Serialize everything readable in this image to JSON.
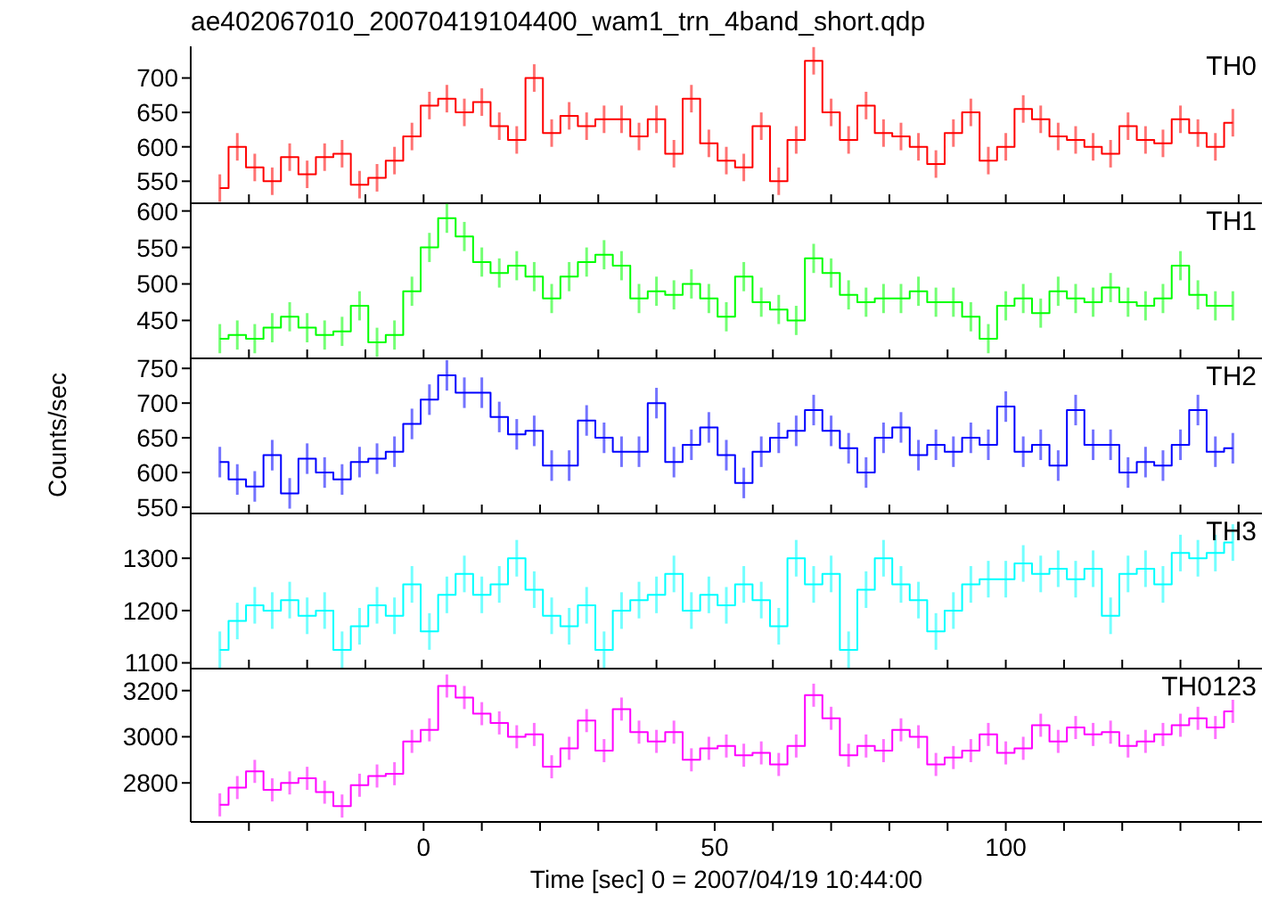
{
  "chart_data": [
    {
      "type": "step",
      "title": "ae402067010_20070419104400_wam1_trn_4band_short.qdp",
      "x": [
        -35,
        -32,
        -29,
        -26,
        -23,
        -20,
        -17,
        -14,
        -11,
        -8,
        -5,
        -2,
        1,
        4,
        7,
        10,
        13,
        16,
        19,
        22,
        25,
        28,
        31,
        34,
        37,
        40,
        43,
        46,
        49,
        52,
        55,
        58,
        61,
        64,
        67,
        70,
        73,
        76,
        79,
        82,
        85,
        88,
        91,
        94,
        97,
        100,
        103,
        106,
        109,
        112,
        115,
        118,
        121,
        124,
        127,
        130,
        133,
        136,
        139
      ],
      "xlim": [
        -40,
        144
      ],
      "xticks": [
        {
          "value": -30,
          "label": null
        },
        {
          "value": -20,
          "label": null
        },
        {
          "value": -10,
          "label": null
        },
        0,
        {
          "value": 10,
          "label": null
        },
        {
          "value": 20,
          "label": null
        },
        {
          "value": 30,
          "label": null
        },
        {
          "value": 40,
          "label": null
        },
        50,
        {
          "value": 60,
          "label": null
        },
        {
          "value": 70,
          "label": null
        },
        {
          "value": 80,
          "label": null
        },
        {
          "value": 90,
          "label": null
        },
        100,
        {
          "value": 110,
          "label": null
        },
        {
          "value": 120,
          "label": null
        },
        {
          "value": 130,
          "label": null
        },
        {
          "value": 140,
          "label": null
        }
      ],
      "ylim": [
        518,
        746
      ],
      "yticks": [
        550,
        600,
        650,
        700
      ],
      "tick_labels": "y",
      "series": [
        {
          "name": "TH0",
          "color": "#ff0000",
          "values": [
            540,
            600,
            570,
            550,
            585,
            560,
            585,
            590,
            545,
            555,
            580,
            615,
            660,
            670,
            650,
            665,
            630,
            610,
            700,
            620,
            645,
            630,
            640,
            640,
            615,
            640,
            590,
            670,
            605,
            580,
            570,
            630,
            550,
            610,
            725,
            650,
            610,
            660,
            620,
            615,
            600,
            575,
            620,
            650,
            580,
            600,
            655,
            640,
            615,
            610,
            600,
            590,
            630,
            610,
            605,
            640,
            620,
            600,
            635
          ],
          "errors": [
            20,
            20,
            20,
            20,
            20,
            20,
            20,
            20,
            20,
            20,
            20,
            20,
            20,
            20,
            20,
            20,
            20,
            20,
            20,
            20,
            20,
            20,
            20,
            20,
            20,
            20,
            20,
            20,
            20,
            20,
            20,
            20,
            20,
            20,
            20,
            20,
            20,
            20,
            20,
            20,
            20,
            20,
            20,
            20,
            20,
            20,
            20,
            20,
            20,
            20,
            20,
            20,
            20,
            20,
            20,
            20,
            20,
            20,
            20
          ]
        }
      ]
    },
    {
      "type": "step",
      "x": [
        -35,
        -32,
        -29,
        -26,
        -23,
        -20,
        -17,
        -14,
        -11,
        -8,
        -5,
        -2,
        1,
        4,
        7,
        10,
        13,
        16,
        19,
        22,
        25,
        28,
        31,
        34,
        37,
        40,
        43,
        46,
        49,
        52,
        55,
        58,
        61,
        64,
        67,
        70,
        73,
        76,
        79,
        82,
        85,
        88,
        91,
        94,
        97,
        100,
        103,
        106,
        109,
        112,
        115,
        118,
        121,
        124,
        127,
        130,
        133,
        136,
        139
      ],
      "xlim": [
        -40,
        144
      ],
      "xticks": [
        {
          "value": -30,
          "label": null
        },
        {
          "value": -20,
          "label": null
        },
        {
          "value": -10,
          "label": null
        },
        0,
        {
          "value": 10,
          "label": null
        },
        {
          "value": 20,
          "label": null
        },
        {
          "value": 30,
          "label": null
        },
        {
          "value": 40,
          "label": null
        },
        50,
        {
          "value": 60,
          "label": null
        },
        {
          "value": 70,
          "label": null
        },
        {
          "value": 80,
          "label": null
        },
        {
          "value": 90,
          "label": null
        },
        100,
        {
          "value": 110,
          "label": null
        },
        {
          "value": 120,
          "label": null
        },
        {
          "value": 130,
          "label": null
        },
        {
          "value": 140,
          "label": null
        }
      ],
      "ylim": [
        398,
        613
      ],
      "yticks": [
        450,
        500,
        550,
        600
      ],
      "tick_labels": "y",
      "series": [
        {
          "name": "TH1",
          "color": "#00ff00",
          "values": [
            425,
            430,
            425,
            440,
            455,
            440,
            430,
            435,
            470,
            420,
            430,
            490,
            550,
            590,
            565,
            530,
            515,
            525,
            510,
            480,
            510,
            530,
            540,
            525,
            480,
            490,
            485,
            500,
            480,
            455,
            510,
            475,
            465,
            450,
            535,
            515,
            485,
            475,
            480,
            480,
            490,
            475,
            475,
            455,
            425,
            470,
            480,
            460,
            490,
            480,
            475,
            495,
            475,
            470,
            480,
            525,
            485,
            470,
            470
          ],
          "errors": [
            20,
            20,
            20,
            20,
            20,
            20,
            20,
            20,
            20,
            20,
            20,
            20,
            20,
            20,
            20,
            20,
            20,
            20,
            20,
            20,
            20,
            20,
            20,
            20,
            20,
            20,
            20,
            20,
            20,
            20,
            20,
            20,
            20,
            20,
            20,
            20,
            20,
            20,
            20,
            20,
            20,
            20,
            20,
            20,
            20,
            20,
            20,
            20,
            20,
            20,
            20,
            20,
            20,
            20,
            20,
            20,
            20,
            20,
            20
          ]
        }
      ]
    },
    {
      "type": "step",
      "ylabel": "Counts/sec",
      "x": [
        -35,
        -32,
        -29,
        -26,
        -23,
        -20,
        -17,
        -14,
        -11,
        -8,
        -5,
        -2,
        1,
        4,
        7,
        10,
        13,
        16,
        19,
        22,
        25,
        28,
        31,
        34,
        37,
        40,
        43,
        46,
        49,
        52,
        55,
        58,
        61,
        64,
        67,
        70,
        73,
        76,
        79,
        82,
        85,
        88,
        91,
        94,
        97,
        100,
        103,
        106,
        109,
        112,
        115,
        118,
        121,
        124,
        127,
        130,
        133,
        136,
        139
      ],
      "xlim": [
        -40,
        144
      ],
      "xticks": [
        {
          "value": -30,
          "label": null
        },
        {
          "value": -20,
          "label": null
        },
        {
          "value": -10,
          "label": null
        },
        0,
        {
          "value": 10,
          "label": null
        },
        {
          "value": 20,
          "label": null
        },
        {
          "value": 30,
          "label": null
        },
        {
          "value": 40,
          "label": null
        },
        50,
        {
          "value": 60,
          "label": null
        },
        {
          "value": 70,
          "label": null
        },
        {
          "value": 80,
          "label": null
        },
        {
          "value": 90,
          "label": null
        },
        100,
        {
          "value": 110,
          "label": null
        },
        {
          "value": 120,
          "label": null
        },
        {
          "value": 130,
          "label": null
        },
        {
          "value": 140,
          "label": null
        }
      ],
      "ylim": [
        541,
        767
      ],
      "yticks": [
        550,
        600,
        650,
        700,
        750
      ],
      "tick_labels": "y",
      "series": [
        {
          "name": "TH2",
          "color": "#0000ff",
          "values": [
            615,
            590,
            580,
            625,
            570,
            620,
            600,
            590,
            615,
            620,
            630,
            670,
            705,
            740,
            715,
            715,
            680,
            655,
            660,
            610,
            610,
            675,
            650,
            630,
            630,
            700,
            615,
            640,
            665,
            625,
            585,
            630,
            650,
            660,
            690,
            660,
            635,
            600,
            650,
            665,
            625,
            640,
            630,
            650,
            640,
            695,
            630,
            640,
            610,
            690,
            640,
            640,
            600,
            615,
            610,
            640,
            690,
            630,
            635
          ],
          "errors": [
            22,
            22,
            22,
            22,
            22,
            22,
            22,
            22,
            22,
            22,
            22,
            22,
            22,
            22,
            22,
            22,
            22,
            22,
            22,
            22,
            22,
            22,
            22,
            22,
            22,
            22,
            22,
            22,
            22,
            22,
            22,
            22,
            22,
            22,
            22,
            22,
            22,
            22,
            22,
            22,
            22,
            22,
            22,
            22,
            22,
            22,
            22,
            22,
            22,
            22,
            22,
            22,
            22,
            22,
            22,
            22,
            22,
            22,
            22
          ]
        }
      ]
    },
    {
      "type": "step",
      "x": [
        -35,
        -32,
        -29,
        -26,
        -23,
        -20,
        -17,
        -14,
        -11,
        -8,
        -5,
        -2,
        1,
        4,
        7,
        10,
        13,
        16,
        19,
        22,
        25,
        28,
        31,
        34,
        37,
        40,
        43,
        46,
        49,
        52,
        55,
        58,
        61,
        64,
        67,
        70,
        73,
        76,
        79,
        82,
        85,
        88,
        91,
        94,
        97,
        100,
        103,
        106,
        109,
        112,
        115,
        118,
        121,
        124,
        127,
        130,
        133,
        136,
        139
      ],
      "xlim": [
        -40,
        144
      ],
      "xticks": [
        {
          "value": -30,
          "label": null
        },
        {
          "value": -20,
          "label": null
        },
        {
          "value": -10,
          "label": null
        },
        0,
        {
          "value": 10,
          "label": null
        },
        {
          "value": 20,
          "label": null
        },
        {
          "value": 30,
          "label": null
        },
        {
          "value": 40,
          "label": null
        },
        50,
        {
          "value": 60,
          "label": null
        },
        {
          "value": 70,
          "label": null
        },
        {
          "value": 80,
          "label": null
        },
        {
          "value": 90,
          "label": null
        },
        100,
        {
          "value": 110,
          "label": null
        },
        {
          "value": 120,
          "label": null
        },
        {
          "value": 130,
          "label": null
        },
        {
          "value": 140,
          "label": null
        }
      ],
      "ylim": [
        1089,
        1389
      ],
      "yticks": [
        1100,
        1200,
        1300
      ],
      "tick_labels": "y",
      "series": [
        {
          "name": "TH3",
          "color": "#00ffff",
          "values": [
            1125,
            1180,
            1210,
            1200,
            1220,
            1190,
            1200,
            1125,
            1170,
            1210,
            1190,
            1250,
            1160,
            1230,
            1270,
            1230,
            1250,
            1300,
            1240,
            1190,
            1170,
            1210,
            1125,
            1200,
            1220,
            1230,
            1270,
            1200,
            1230,
            1210,
            1250,
            1220,
            1170,
            1300,
            1250,
            1270,
            1125,
            1240,
            1300,
            1250,
            1220,
            1160,
            1200,
            1250,
            1260,
            1260,
            1290,
            1270,
            1280,
            1260,
            1280,
            1190,
            1270,
            1280,
            1250,
            1310,
            1300,
            1310,
            1330
          ],
          "errors": [
            35,
            35,
            35,
            35,
            35,
            35,
            35,
            35,
            35,
            35,
            35,
            35,
            35,
            35,
            35,
            35,
            35,
            35,
            35,
            35,
            35,
            35,
            35,
            35,
            35,
            35,
            35,
            35,
            35,
            35,
            35,
            35,
            35,
            35,
            35,
            35,
            35,
            35,
            35,
            35,
            35,
            35,
            35,
            35,
            35,
            35,
            35,
            35,
            35,
            35,
            35,
            35,
            35,
            35,
            35,
            35,
            35,
            35,
            35
          ]
        }
      ]
    },
    {
      "type": "step",
      "xlabel": "Time [sec] 0 = 2007/04/19 10:44:00",
      "x": [
        -35,
        -32,
        -29,
        -26,
        -23,
        -20,
        -17,
        -14,
        -11,
        -8,
        -5,
        -2,
        1,
        4,
        7,
        10,
        13,
        16,
        19,
        22,
        25,
        28,
        31,
        34,
        37,
        40,
        43,
        46,
        49,
        52,
        55,
        58,
        61,
        64,
        67,
        70,
        73,
        76,
        79,
        82,
        85,
        88,
        91,
        94,
        97,
        100,
        103,
        106,
        109,
        112,
        115,
        118,
        121,
        124,
        127,
        130,
        133,
        136,
        139
      ],
      "xlim": [
        -40,
        144
      ],
      "xticks": [
        {
          "value": -30,
          "label": null
        },
        {
          "value": -20,
          "label": null
        },
        {
          "value": -10,
          "label": null
        },
        0,
        {
          "value": 10,
          "label": null
        },
        {
          "value": 20,
          "label": null
        },
        {
          "value": 30,
          "label": null
        },
        {
          "value": 40,
          "label": null
        },
        50,
        {
          "value": 60,
          "label": null
        },
        {
          "value": 70,
          "label": null
        },
        {
          "value": 80,
          "label": null
        },
        {
          "value": 90,
          "label": null
        },
        100,
        {
          "value": 110,
          "label": null
        },
        {
          "value": 120,
          "label": null
        },
        {
          "value": 130,
          "label": null
        },
        {
          "value": 140,
          "label": null
        }
      ],
      "ylim": [
        2631,
        3303
      ],
      "yticks": [
        2800,
        3000,
        3200
      ],
      "series": [
        {
          "name": "TH0123",
          "color": "#ff00ff",
          "values": [
            2705,
            2780,
            2850,
            2770,
            2800,
            2820,
            2760,
            2700,
            2790,
            2830,
            2840,
            2980,
            3030,
            3220,
            3170,
            3100,
            3060,
            3000,
            3010,
            2870,
            2950,
            3070,
            2940,
            3120,
            3020,
            2980,
            3020,
            2900,
            2950,
            2960,
            2920,
            2930,
            2880,
            2960,
            3180,
            3080,
            2920,
            2960,
            2940,
            3030,
            3000,
            2880,
            2910,
            2940,
            3010,
            2930,
            2950,
            3050,
            2980,
            3040,
            3010,
            3020,
            2960,
            2980,
            3010,
            3050,
            3080,
            3040,
            3110
          ],
          "errors": [
            50,
            50,
            50,
            50,
            50,
            50,
            50,
            50,
            50,
            50,
            50,
            50,
            50,
            50,
            50,
            50,
            50,
            50,
            50,
            50,
            50,
            50,
            50,
            50,
            50,
            50,
            50,
            50,
            50,
            50,
            50,
            50,
            50,
            50,
            50,
            50,
            50,
            50,
            50,
            50,
            50,
            50,
            50,
            50,
            50,
            50,
            50,
            50,
            50,
            50,
            50,
            50,
            50,
            50,
            50,
            50,
            50,
            50,
            50
          ]
        }
      ]
    }
  ]
}
